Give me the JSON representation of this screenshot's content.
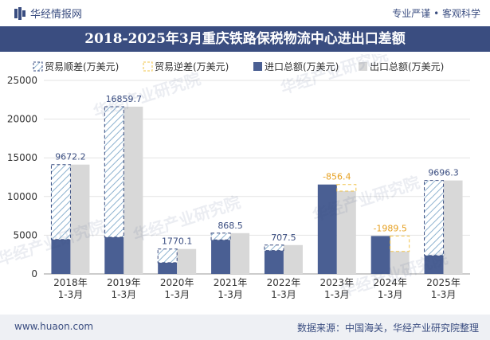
{
  "header": {
    "brand": "华经情报网",
    "tagline": "专业严谨 • 客观科学"
  },
  "title": "2018-2025年3月重庆铁路保税物流中心进出口差额",
  "footer": {
    "website": "www.huaon.com",
    "source": "数据来源：中国海关，华经产业研究院整理"
  },
  "watermark": "华经产业研究院",
  "colors": {
    "brand": "#3a4d80",
    "import": "#4a5f93",
    "export": "#d8d8d8",
    "surplus": "#8fb3d0",
    "deficit": "#f2c44a",
    "surplus_label": "#3a4d80",
    "deficit_label": "#e6a020"
  },
  "chart_data": {
    "type": "bar",
    "categories": [
      "2018年\n1-3月",
      "2019年\n1-3月",
      "2020年\n1-3月",
      "2021年\n1-3月",
      "2022年\n1-3月",
      "2023年\n1-3月",
      "2024年\n1-3月",
      "2025年\n1-3月"
    ],
    "series": [
      {
        "name": "贸易顺差(万美元)",
        "values": [
          9672.2,
          16859.7,
          1770.1,
          868.5,
          707.5,
          null,
          null,
          9696.3
        ]
      },
      {
        "name": "贸易逆差(万美元)",
        "values": [
          null,
          null,
          null,
          null,
          null,
          -856.4,
          -1989.5,
          null
        ]
      },
      {
        "name": "进口总额(万美元)",
        "values": [
          4450,
          4750,
          1450,
          4400,
          3020,
          11550,
          4900,
          2380
        ]
      },
      {
        "name": "出口总额(万美元)",
        "values": [
          14122.2,
          21609.7,
          3220.1,
          5268.5,
          3727.5,
          10693.6,
          2910.5,
          12076.3
        ]
      }
    ],
    "balance_labels": [
      "9672.2",
      "16859.7",
      "1770.1",
      "868.5",
      "707.5",
      "-856.4",
      "-1989.5",
      "9696.3"
    ],
    "ylim": [
      0,
      25000
    ],
    "yticks": [
      0,
      5000,
      10000,
      15000,
      20000,
      25000
    ],
    "legend_position": "top",
    "grid": true
  }
}
